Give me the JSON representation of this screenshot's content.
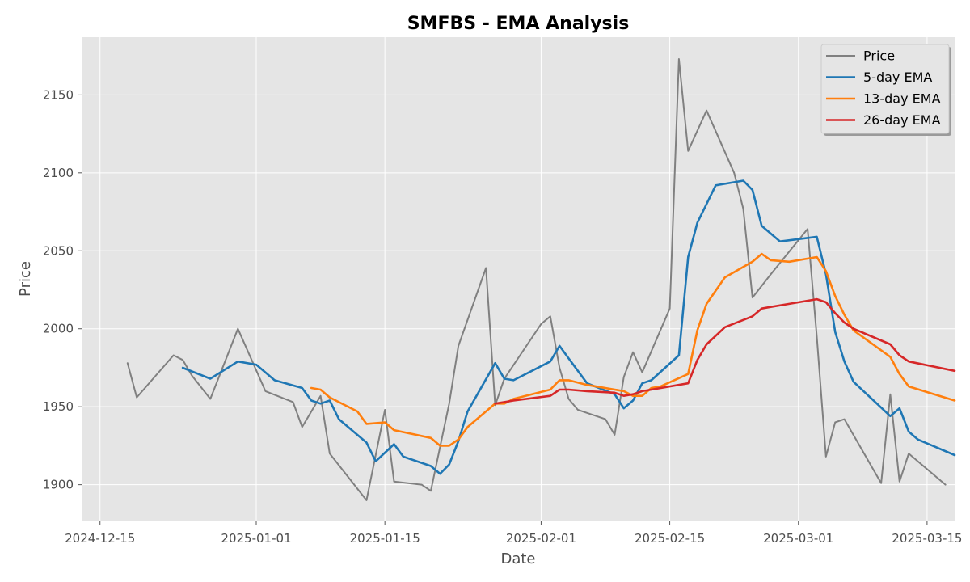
{
  "chart_data": {
    "type": "line",
    "title": "SMFBS - EMA Analysis",
    "xlabel": "Date",
    "ylabel": "Price",
    "xlim": [
      "2024-12-13",
      "2025-03-18"
    ],
    "ylim": [
      1877,
      2187
    ],
    "x_ticks": [
      "2024-12-15",
      "2025-01-01",
      "2025-01-15",
      "2025-02-01",
      "2025-02-15",
      "2025-03-01",
      "2025-03-15"
    ],
    "y_ticks": [
      1900,
      1950,
      2000,
      2050,
      2100,
      2150
    ],
    "grid": true,
    "legend_position": "top-right",
    "series": [
      {
        "name": "Price",
        "color": "#808080",
        "points": [
          [
            "2024-12-18",
            1978
          ],
          [
            "2024-12-19",
            1956
          ],
          [
            "2024-12-23",
            1983
          ],
          [
            "2024-12-24",
            1980
          ],
          [
            "2024-12-25",
            1970
          ],
          [
            "2024-12-27",
            1955
          ],
          [
            "2024-12-30",
            2000
          ],
          [
            "2025-01-02",
            1960
          ],
          [
            "2025-01-05",
            1953
          ],
          [
            "2025-01-06",
            1937
          ],
          [
            "2025-01-08",
            1957
          ],
          [
            "2025-01-09",
            1920
          ],
          [
            "2025-01-13",
            1890
          ],
          [
            "2025-01-15",
            1948
          ],
          [
            "2025-01-16",
            1902
          ],
          [
            "2025-01-19",
            1900
          ],
          [
            "2025-01-20",
            1896
          ],
          [
            "2025-01-22",
            1952
          ],
          [
            "2025-01-23",
            1989
          ],
          [
            "2025-01-26",
            2039
          ],
          [
            "2025-01-27",
            1951
          ],
          [
            "2025-01-28",
            1968
          ],
          [
            "2025-02-01",
            2003
          ],
          [
            "2025-02-02",
            2008
          ],
          [
            "2025-02-03",
            1975
          ],
          [
            "2025-02-04",
            1955
          ],
          [
            "2025-02-05",
            1948
          ],
          [
            "2025-02-08",
            1942
          ],
          [
            "2025-02-09",
            1932
          ],
          [
            "2025-02-10",
            1969
          ],
          [
            "2025-02-11",
            1985
          ],
          [
            "2025-02-12",
            1972
          ],
          [
            "2025-02-15",
            2013
          ],
          [
            "2025-02-16",
            2173
          ],
          [
            "2025-02-17",
            2114
          ],
          [
            "2025-02-19",
            2140
          ],
          [
            "2025-02-22",
            2100
          ],
          [
            "2025-02-23",
            2077
          ],
          [
            "2025-02-24",
            2020
          ],
          [
            "2025-02-26",
            2035
          ],
          [
            "2025-03-02",
            2064
          ],
          [
            "2025-03-03",
            1995
          ],
          [
            "2025-03-04",
            1918
          ],
          [
            "2025-03-05",
            1940
          ],
          [
            "2025-03-06",
            1942
          ],
          [
            "2025-03-10",
            1901
          ],
          [
            "2025-03-11",
            1958
          ],
          [
            "2025-03-12",
            1902
          ],
          [
            "2025-03-13",
            1920
          ],
          [
            "2025-03-17",
            1900
          ]
        ]
      },
      {
        "name": "5-day EMA",
        "color": "#1f77b4",
        "points": [
          [
            "2024-12-24",
            1975
          ],
          [
            "2024-12-27",
            1968
          ],
          [
            "2024-12-30",
            1979
          ],
          [
            "2025-01-01",
            1977
          ],
          [
            "2025-01-02",
            1972
          ],
          [
            "2025-01-03",
            1967
          ],
          [
            "2025-01-06",
            1962
          ],
          [
            "2025-01-07",
            1954
          ],
          [
            "2025-01-08",
            1952
          ],
          [
            "2025-01-09",
            1954
          ],
          [
            "2025-01-10",
            1942
          ],
          [
            "2025-01-13",
            1927
          ],
          [
            "2025-01-14",
            1915
          ],
          [
            "2025-01-16",
            1926
          ],
          [
            "2025-01-17",
            1918
          ],
          [
            "2025-01-20",
            1912
          ],
          [
            "2025-01-21",
            1907
          ],
          [
            "2025-01-22",
            1913
          ],
          [
            "2025-01-23",
            1928
          ],
          [
            "2025-01-24",
            1947
          ],
          [
            "2025-01-27",
            1978
          ],
          [
            "2025-01-28",
            1968
          ],
          [
            "2025-01-29",
            1967
          ],
          [
            "2025-02-02",
            1979
          ],
          [
            "2025-02-03",
            1989
          ],
          [
            "2025-02-04",
            1981
          ],
          [
            "2025-02-06",
            1965
          ],
          [
            "2025-02-09",
            1958
          ],
          [
            "2025-02-10",
            1949
          ],
          [
            "2025-02-11",
            1954
          ],
          [
            "2025-02-12",
            1965
          ],
          [
            "2025-02-13",
            1967
          ],
          [
            "2025-02-16",
            1983
          ],
          [
            "2025-02-17",
            2046
          ],
          [
            "2025-02-18",
            2068
          ],
          [
            "2025-02-20",
            2092
          ],
          [
            "2025-02-23",
            2095
          ],
          [
            "2025-02-24",
            2089
          ],
          [
            "2025-02-25",
            2066
          ],
          [
            "2025-02-27",
            2056
          ],
          [
            "2025-03-03",
            2059
          ],
          [
            "2025-03-04",
            2035
          ],
          [
            "2025-03-05",
            1998
          ],
          [
            "2025-03-06",
            1979
          ],
          [
            "2025-03-07",
            1966
          ],
          [
            "2025-03-11",
            1944
          ],
          [
            "2025-03-12",
            1949
          ],
          [
            "2025-03-13",
            1934
          ],
          [
            "2025-03-14",
            1929
          ],
          [
            "2025-03-18",
            1919
          ]
        ]
      },
      {
        "name": "13-day EMA",
        "color": "#ff7f0e",
        "points": [
          [
            "2025-01-07",
            1962
          ],
          [
            "2025-01-08",
            1961
          ],
          [
            "2025-01-09",
            1956
          ],
          [
            "2025-01-12",
            1947
          ],
          [
            "2025-01-13",
            1939
          ],
          [
            "2025-01-15",
            1940
          ],
          [
            "2025-01-16",
            1935
          ],
          [
            "2025-01-20",
            1930
          ],
          [
            "2025-01-21",
            1925
          ],
          [
            "2025-01-22",
            1925
          ],
          [
            "2025-01-23",
            1929
          ],
          [
            "2025-01-24",
            1937
          ],
          [
            "2025-01-27",
            1952
          ],
          [
            "2025-01-28",
            1952
          ],
          [
            "2025-01-29",
            1955
          ],
          [
            "2025-02-02",
            1961
          ],
          [
            "2025-02-03",
            1967
          ],
          [
            "2025-02-04",
            1967
          ],
          [
            "2025-02-06",
            1964
          ],
          [
            "2025-02-10",
            1960
          ],
          [
            "2025-02-11",
            1957
          ],
          [
            "2025-02-12",
            1957
          ],
          [
            "2025-02-13",
            1962
          ],
          [
            "2025-02-14",
            1963
          ],
          [
            "2025-02-17",
            1971
          ],
          [
            "2025-02-18",
            1999
          ],
          [
            "2025-02-19",
            2016
          ],
          [
            "2025-02-21",
            2033
          ],
          [
            "2025-02-24",
            2043
          ],
          [
            "2025-02-25",
            2048
          ],
          [
            "2025-02-26",
            2044
          ],
          [
            "2025-02-28",
            2043
          ],
          [
            "2025-03-03",
            2046
          ],
          [
            "2025-03-04",
            2037
          ],
          [
            "2025-03-05",
            2021
          ],
          [
            "2025-03-06",
            2009
          ],
          [
            "2025-03-07",
            1999
          ],
          [
            "2025-03-11",
            1982
          ],
          [
            "2025-03-12",
            1971
          ],
          [
            "2025-03-13",
            1963
          ],
          [
            "2025-03-18",
            1954
          ]
        ]
      },
      {
        "name": "26-day EMA",
        "color": "#d62728",
        "points": [
          [
            "2025-01-27",
            1952
          ],
          [
            "2025-01-29",
            1954
          ],
          [
            "2025-02-02",
            1957
          ],
          [
            "2025-02-03",
            1961
          ],
          [
            "2025-02-04",
            1961
          ],
          [
            "2025-02-06",
            1960
          ],
          [
            "2025-02-09",
            1959
          ],
          [
            "2025-02-10",
            1957
          ],
          [
            "2025-02-11",
            1958
          ],
          [
            "2025-02-12",
            1960
          ],
          [
            "2025-02-13",
            1961
          ],
          [
            "2025-02-17",
            1965
          ],
          [
            "2025-02-18",
            1980
          ],
          [
            "2025-02-19",
            1990
          ],
          [
            "2025-02-21",
            2001
          ],
          [
            "2025-02-24",
            2008
          ],
          [
            "2025-02-25",
            2013
          ],
          [
            "2025-02-26",
            2014
          ],
          [
            "2025-02-28",
            2016
          ],
          [
            "2025-03-03",
            2019
          ],
          [
            "2025-03-04",
            2017
          ],
          [
            "2025-03-05",
            2010
          ],
          [
            "2025-03-06",
            2004
          ],
          [
            "2025-03-07",
            2000
          ],
          [
            "2025-03-11",
            1990
          ],
          [
            "2025-03-12",
            1983
          ],
          [
            "2025-03-13",
            1979
          ],
          [
            "2025-03-18",
            1973
          ]
        ]
      }
    ]
  }
}
